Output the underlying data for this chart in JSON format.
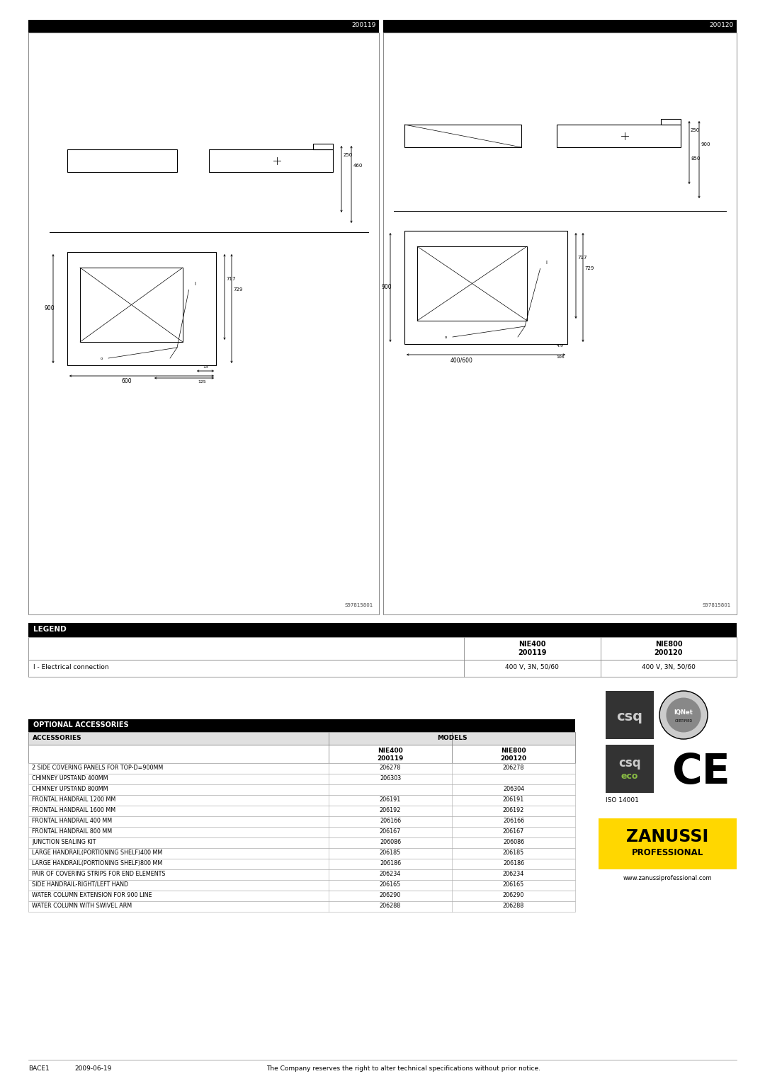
{
  "page_bg": "#ffffff",
  "left_panel_label": "200119",
  "right_panel_label": "200120",
  "legend_title": "LEGEND",
  "legend_col2_line1": "NIE400",
  "legend_col2_line2": "200119",
  "legend_col3_line1": "NIE800",
  "legend_col3_line2": "200120",
  "legend_row1_label": "I - Electrical connection",
  "legend_row1_val1": "400 V, 3N, 50/60",
  "legend_row1_val2": "400 V, 3N, 50/60",
  "opt_acc_title": "OPTIONAL ACCESSORIES",
  "opt_acc_col1": "ACCESSORIES",
  "opt_acc_col2": "MODELS",
  "opt_acc_sub_col2_l1": "NIE400",
  "opt_acc_sub_col2_l2": "200119",
  "opt_acc_sub_col3_l1": "NIE800",
  "opt_acc_sub_col3_l2": "200120",
  "accessories": [
    {
      "name": "2 SIDE COVERING PANELS FOR TOP-D=900MM",
      "val1": "206278",
      "val2": "206278"
    },
    {
      "name": "CHIMNEY UPSTAND 400MM",
      "val1": "206303",
      "val2": ""
    },
    {
      "name": "CHIMNEY UPSTAND 800MM",
      "val1": "",
      "val2": "206304"
    },
    {
      "name": "FRONTAL HANDRAIL 1200 MM",
      "val1": "206191",
      "val2": "206191"
    },
    {
      "name": "FRONTAL HANDRAIL 1600 MM",
      "val1": "206192",
      "val2": "206192"
    },
    {
      "name": "FRONTAL HANDRAIL 400 MM",
      "val1": "206166",
      "val2": "206166"
    },
    {
      "name": "FRONTAL HANDRAIL 800 MM",
      "val1": "206167",
      "val2": "206167"
    },
    {
      "name": "JUNCTION SEALING KIT",
      "val1": "206086",
      "val2": "206086"
    },
    {
      "name": "LARGE HANDRAIL(PORTIONING SHELF)400 MM",
      "val1": "206185",
      "val2": "206185"
    },
    {
      "name": "LARGE HANDRAIL(PORTIONING SHELF)800 MM",
      "val1": "206186",
      "val2": "206186"
    },
    {
      "name": "PAIR OF COVERING STRIPS FOR END ELEMENTS",
      "val1": "206234",
      "val2": "206234"
    },
    {
      "name": "SIDE HANDRAIL-RIGHT/LEFT HAND",
      "val1": "206165",
      "val2": "206165"
    },
    {
      "name": "WATER COLUMN EXTENSION FOR 900 LINE",
      "val1": "206290",
      "val2": "206290"
    },
    {
      "name": "WATER COLUMN WITH SWIVEL ARM",
      "val1": "206288",
      "val2": "206288"
    }
  ],
  "footer_left": "BACE1",
  "footer_date": "2009-06-19",
  "footer_center": "The Company reserves the right to alter technical specifications without prior notice.",
  "website": "www.zanussiprofessional.com"
}
